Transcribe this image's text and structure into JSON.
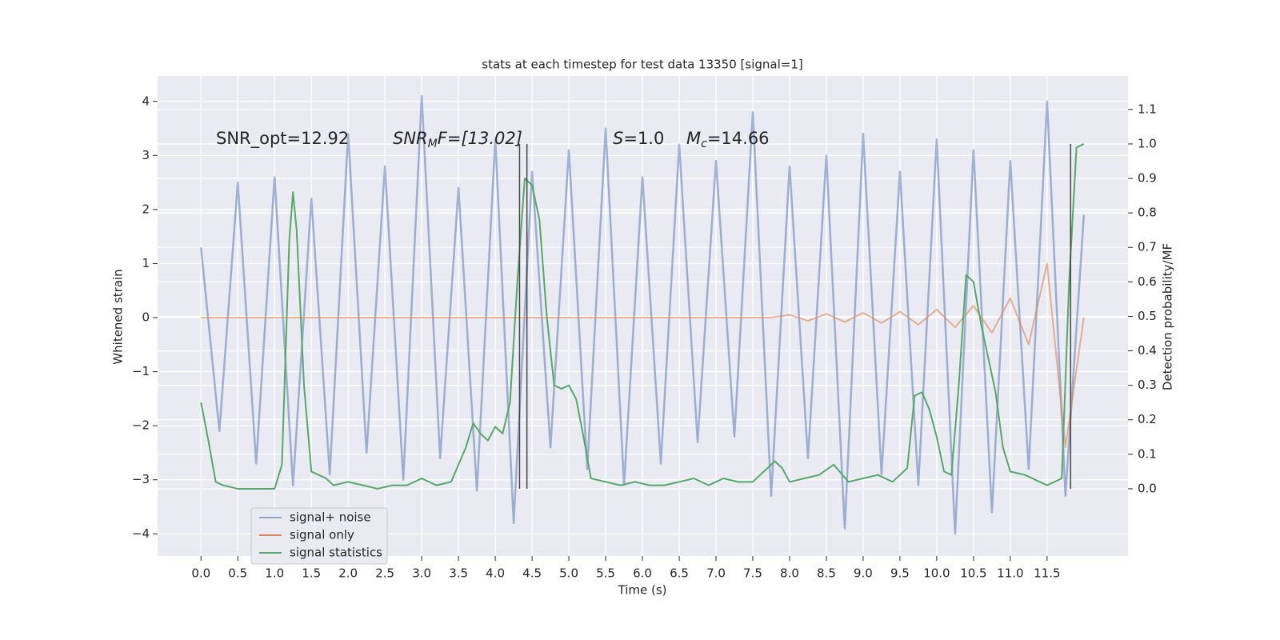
{
  "chart_data": {
    "type": "line",
    "title": "stats at each timestep for test data 13350 [signal=1]",
    "xlabel": "Time (s)",
    "ylabel": "Whitened strain",
    "y2label": "Detection probability/MF",
    "xlim": [
      -0.59,
      12.6
    ],
    "ylim": [
      -4.41,
      4.47
    ],
    "y2lim": [
      -0.195,
      1.197
    ],
    "xticks": [
      {
        "value": 0,
        "label": "0.0"
      },
      {
        "value": 0.5,
        "label": "0.5"
      },
      {
        "value": 1,
        "label": "1.0"
      },
      {
        "value": 1.5,
        "label": "1.5"
      },
      {
        "value": 2,
        "label": "2.0"
      },
      {
        "value": 2.5,
        "label": "2.5"
      },
      {
        "value": 3,
        "label": "3.0"
      },
      {
        "value": 3.5,
        "label": "3.5"
      },
      {
        "value": 4,
        "label": "4.0"
      },
      {
        "value": 4.5,
        "label": "4.5"
      },
      {
        "value": 5,
        "label": "5.0"
      },
      {
        "value": 5.5,
        "label": "5.5"
      },
      {
        "value": 6,
        "label": "6.0"
      },
      {
        "value": 6.5,
        "label": "6.5"
      },
      {
        "value": 7,
        "label": "7.0"
      },
      {
        "value": 7.5,
        "label": "7.5"
      },
      {
        "value": 8,
        "label": "8.0"
      },
      {
        "value": 8.5,
        "label": "8.5"
      },
      {
        "value": 9,
        "label": "9.0"
      },
      {
        "value": 9.5,
        "label": "9.5"
      },
      {
        "value": 10,
        "label": "10.0"
      },
      {
        "value": 10.5,
        "label": "10.5"
      },
      {
        "value": 11,
        "label": "11.0"
      },
      {
        "value": 11.5,
        "label": "11.5"
      }
    ],
    "yticks": [
      {
        "value": -4,
        "label": "−4"
      },
      {
        "value": -3,
        "label": "−3"
      },
      {
        "value": -2,
        "label": "−2"
      },
      {
        "value": -1,
        "label": "−1"
      },
      0,
      1,
      2,
      3,
      4
    ],
    "y2ticks": [
      {
        "value": 0,
        "label": "0.0"
      },
      0.1,
      0.2,
      0.3,
      0.4,
      0.5,
      0.6,
      0.7,
      0.8,
      0.9,
      {
        "value": 1,
        "label": "1.0"
      },
      1.1
    ],
    "grid": true,
    "legend": "lower left",
    "series": [
      {
        "name": "signal+ noise",
        "color": "#4c72b0",
        "x": [
          0,
          0.25,
          0.5,
          0.75,
          1,
          1.25,
          1.5,
          1.75,
          2,
          2.25,
          2.5,
          2.75,
          3,
          3.25,
          3.5,
          3.75,
          4,
          4.25,
          4.5,
          4.75,
          5,
          5.25,
          5.5,
          5.75,
          6,
          6.25,
          6.5,
          6.75,
          7,
          7.25,
          7.5,
          7.75,
          8,
          8.25,
          8.5,
          8.75,
          9,
          9.25,
          9.5,
          9.75,
          10,
          10.25,
          10.5,
          10.75,
          11,
          11.25,
          11.5,
          11.75,
          12
        ],
        "values": [
          1.3,
          -2.1,
          2.5,
          -2.7,
          2.6,
          -3.1,
          2.2,
          -2.9,
          3.4,
          -2.5,
          2.8,
          -3.0,
          4.1,
          -2.6,
          2.4,
          -3.2,
          3.3,
          -3.8,
          2.7,
          -2.4,
          3.1,
          -2.8,
          3.5,
          -3.1,
          2.6,
          -2.7,
          3.2,
          -2.3,
          2.9,
          -2.2,
          3.8,
          -3.3,
          2.8,
          -2.6,
          3.0,
          -3.9,
          3.4,
          -2.9,
          2.7,
          -3.1,
          3.3,
          -4.0,
          3.1,
          -3.6,
          2.9,
          -2.8,
          4.0,
          -3.3,
          1.9
        ]
      },
      {
        "name": "signal only",
        "color": "#dd8452",
        "x": [
          0,
          0.25,
          0.5,
          0.75,
          1,
          1.25,
          1.5,
          1.75,
          2,
          2.25,
          2.5,
          2.75,
          3,
          3.25,
          3.5,
          3.75,
          4,
          4.25,
          4.5,
          4.75,
          5,
          5.25,
          5.5,
          5.75,
          6,
          6.25,
          6.5,
          6.75,
          7,
          7.25,
          7.5,
          7.75,
          8,
          8.25,
          8.5,
          8.75,
          9,
          9.25,
          9.5,
          9.75,
          10,
          10.25,
          10.5,
          10.75,
          11,
          11.25,
          11.5,
          11.75,
          12
        ],
        "values": [
          0,
          0,
          0,
          0,
          0,
          0,
          0,
          0,
          0,
          0,
          0,
          0,
          0,
          0,
          0,
          0,
          0,
          0,
          0,
          0,
          0,
          0,
          0,
          0,
          0,
          0,
          0,
          0,
          0,
          0,
          0,
          0,
          0.05,
          -0.06,
          0.07,
          -0.08,
          0.09,
          -0.1,
          0.11,
          -0.13,
          0.15,
          -0.18,
          0.22,
          -0.28,
          0.36,
          -0.5,
          1.0,
          -2.4,
          0
        ]
      },
      {
        "name": "signal statistics",
        "color": "#55a868",
        "axis": "y2",
        "x": [
          0,
          0.1,
          0.2,
          0.3,
          0.5,
          0.7,
          0.9,
          1.0,
          1.1,
          1.2,
          1.25,
          1.3,
          1.4,
          1.5,
          1.6,
          1.7,
          1.8,
          2.0,
          2.2,
          2.4,
          2.6,
          2.8,
          3.0,
          3.2,
          3.4,
          3.6,
          3.7,
          3.8,
          3.9,
          4.0,
          4.1,
          4.2,
          4.3,
          4.4,
          4.5,
          4.6,
          4.7,
          4.8,
          4.9,
          5.0,
          5.1,
          5.2,
          5.3,
          5.5,
          5.7,
          5.9,
          6.1,
          6.3,
          6.5,
          6.7,
          6.9,
          7.1,
          7.3,
          7.5,
          7.7,
          7.8,
          7.9,
          8.0,
          8.2,
          8.4,
          8.6,
          8.8,
          9.0,
          9.2,
          9.4,
          9.6,
          9.7,
          9.8,
          9.9,
          10.0,
          10.1,
          10.2,
          10.3,
          10.4,
          10.5,
          10.6,
          10.8,
          10.9,
          11.0,
          11.2,
          11.4,
          11.5,
          11.6,
          11.7,
          11.8,
          11.9,
          12.0
        ],
        "values": [
          0.25,
          0.14,
          0.02,
          0.01,
          0.0,
          0.0,
          0.0,
          0.0,
          0.07,
          0.72,
          0.86,
          0.75,
          0.3,
          0.05,
          0.04,
          0.03,
          0.01,
          0.02,
          0.01,
          0.0,
          0.01,
          0.01,
          0.03,
          0.01,
          0.02,
          0.12,
          0.19,
          0.16,
          0.14,
          0.18,
          0.16,
          0.25,
          0.6,
          0.9,
          0.88,
          0.78,
          0.5,
          0.3,
          0.29,
          0.3,
          0.26,
          0.15,
          0.03,
          0.02,
          0.01,
          0.02,
          0.01,
          0.01,
          0.02,
          0.03,
          0.01,
          0.03,
          0.02,
          0.02,
          0.06,
          0.08,
          0.06,
          0.02,
          0.03,
          0.04,
          0.07,
          0.02,
          0.03,
          0.04,
          0.02,
          0.06,
          0.27,
          0.28,
          0.23,
          0.15,
          0.05,
          0.04,
          0.3,
          0.62,
          0.6,
          0.48,
          0.28,
          0.12,
          0.05,
          0.04,
          0.02,
          0.01,
          0.02,
          0.03,
          0.6,
          0.99,
          1.0
        ]
      }
    ],
    "vlines": [
      {
        "x": 4.33,
        "ymin": 0,
        "ymax": 1.0
      },
      {
        "x": 4.43,
        "ymin": 0,
        "ymax": 1.0
      },
      {
        "x": 11.82,
        "ymin": 0,
        "ymax": 1.0
      }
    ],
    "vline_color": "#444444",
    "annotations": [
      {
        "parts": [
          "SNR_opt=12.92"
        ]
      },
      {
        "parts": [
          "SNR",
          "M",
          "F=[13.02]"
        ]
      },
      {
        "parts": [
          "S",
          "=1.0"
        ]
      },
      {
        "parts": [
          "M",
          "c",
          "=14.66"
        ]
      }
    ]
  }
}
